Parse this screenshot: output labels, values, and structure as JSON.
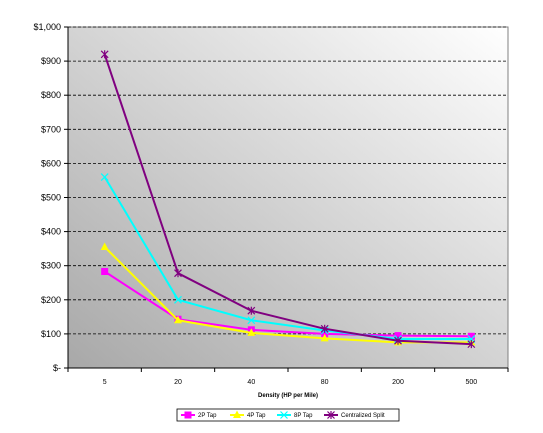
{
  "chart_data": {
    "type": "line",
    "title": "",
    "xlabel": "Density (HP per Mile)",
    "ylabel": "",
    "categories": [
      "5",
      "20",
      "40",
      "80",
      "200",
      "500"
    ],
    "ylim": [
      0,
      1000
    ],
    "y_ticks": [
      0,
      100,
      200,
      300,
      400,
      500,
      600,
      700,
      800,
      900,
      1000
    ],
    "y_tick_labels": [
      "$-",
      "$100",
      "$200",
      "$300",
      "$400",
      "$500",
      "$600",
      "$700",
      "$800",
      "$900",
      "$1,000"
    ],
    "grid": "horizontal dashed",
    "legend_position": "bottom",
    "series": [
      {
        "name": "2P Tap",
        "color": "#ff00ff",
        "marker": "square",
        "values": [
          283,
          143,
          112,
          100,
          95,
          93
        ]
      },
      {
        "name": "4P Tap",
        "color": "#ffff00",
        "marker": "triangle",
        "values": [
          355,
          140,
          103,
          87,
          75,
          75
        ]
      },
      {
        "name": "8P Tap",
        "color": "#00ffff",
        "marker": "x",
        "values": [
          560,
          200,
          140,
          110,
          85,
          85
        ]
      },
      {
        "name": "Centralized Split",
        "color": "#800080",
        "marker": "star",
        "values": [
          920,
          278,
          168,
          115,
          80,
          70
        ]
      }
    ]
  }
}
